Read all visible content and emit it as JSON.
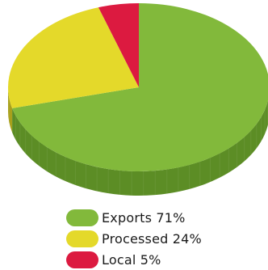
{
  "chart_data": {
    "type": "pie",
    "style": "3d",
    "title": "",
    "slices": [
      {
        "label": "Exports",
        "value": 71,
        "color": "#82b93b",
        "side_color": "#5c8d25",
        "legend_text": "Exports 71%"
      },
      {
        "label": "Processed",
        "value": 24,
        "color": "#e4d92a",
        "side_color": "#a8a01b",
        "legend_text": "Processed 24%"
      },
      {
        "label": "Local",
        "value": 5,
        "color": "#dc1a40",
        "side_color": "#9e1230",
        "legend_text": "Local 5%"
      }
    ],
    "legend": {
      "placement": "bottom"
    }
  }
}
